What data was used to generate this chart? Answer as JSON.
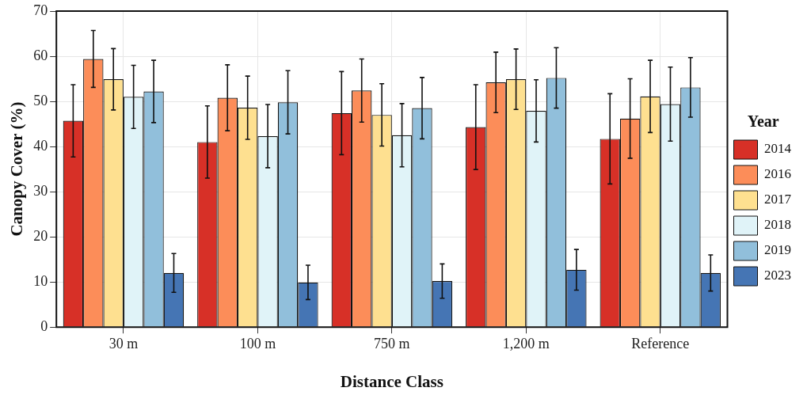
{
  "chart_data": {
    "type": "bar",
    "xlabel": "Distance Class",
    "ylabel": "Canopy Cover (%)",
    "legend_title": "Year",
    "legend": "right",
    "grid": true,
    "categories": [
      "30 m",
      "100 m",
      "750 m",
      "1,200 m",
      "Reference"
    ],
    "ylim": [
      0,
      70
    ],
    "yticks": [
      0,
      10,
      20,
      30,
      40,
      50,
      60,
      70
    ],
    "series": [
      {
        "name": "2014",
        "color": "#d73027",
        "values": [
          45.7,
          41,
          47.4,
          44.3,
          41.7
        ],
        "errors": [
          8,
          8,
          9.2,
          9.4,
          10
        ]
      },
      {
        "name": "2016",
        "color": "#fc8d59",
        "values": [
          59.4,
          50.8,
          52.4,
          54.2,
          46.2
        ],
        "errors": [
          6.3,
          7.3,
          7,
          6.7,
          8.8
        ]
      },
      {
        "name": "2017",
        "color": "#fee090",
        "values": [
          54.9,
          48.6,
          47,
          54.9,
          51.1
        ],
        "errors": [
          6.8,
          7,
          6.9,
          6.7,
          8
        ]
      },
      {
        "name": "2018",
        "color": "#e0f3f8",
        "values": [
          51,
          42.3,
          42.5,
          47.9,
          49.4
        ],
        "errors": [
          7,
          7,
          7,
          6.9,
          8.2
        ]
      },
      {
        "name": "2019",
        "color": "#91bfdb",
        "values": [
          52.2,
          49.8,
          48.5,
          55.2,
          53.1
        ],
        "errors": [
          6.9,
          7,
          6.8,
          6.7,
          6.6
        ]
      },
      {
        "name": "2023",
        "color": "#4575b4",
        "values": [
          12,
          9.9,
          10.2,
          12.7,
          12
        ],
        "errors": [
          4.3,
          3.8,
          3.8,
          4.5,
          4
        ]
      }
    ]
  }
}
